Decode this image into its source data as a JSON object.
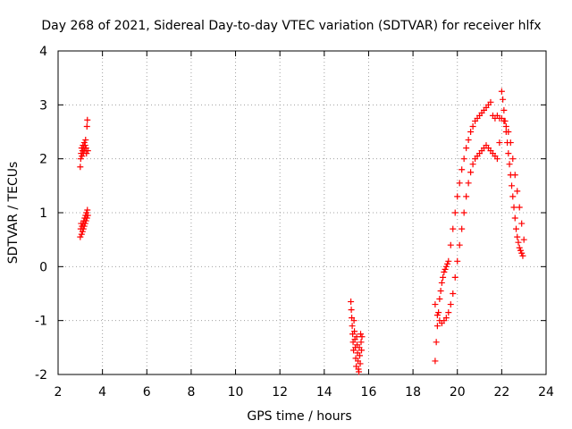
{
  "chart_data": {
    "type": "scatter",
    "title": "Day 268 of 2021, Sidereal Day-to-day VTEC variation (SDTVAR) for receiver hlfx",
    "xlabel": "GPS time / hours",
    "ylabel": "SDTVAR / TECUs",
    "xlim": [
      2,
      24
    ],
    "ylim": [
      -2,
      4
    ],
    "xticks": [
      "2",
      "4",
      "6",
      "8",
      "10",
      "12",
      "14",
      "16",
      "18",
      "20",
      "22",
      "24"
    ],
    "yticks": [
      "-2",
      "-1",
      "0",
      "1",
      "2",
      "3",
      "4"
    ],
    "grid": true,
    "marker": "+",
    "color": "#ff0000",
    "series": [
      {
        "name": "SDTVAR",
        "points": [
          [
            3.0,
            1.85
          ],
          [
            3.02,
            2.0
          ],
          [
            3.04,
            2.1
          ],
          [
            3.06,
            2.2
          ],
          [
            3.08,
            2.05
          ],
          [
            3.1,
            2.15
          ],
          [
            3.12,
            2.25
          ],
          [
            3.14,
            2.1
          ],
          [
            3.16,
            2.2
          ],
          [
            3.18,
            2.3
          ],
          [
            3.2,
            2.15
          ],
          [
            3.22,
            2.25
          ],
          [
            3.24,
            2.35
          ],
          [
            3.26,
            2.2
          ],
          [
            3.28,
            2.1
          ],
          [
            3.3,
            2.6
          ],
          [
            3.32,
            2.72
          ],
          [
            3.34,
            2.15
          ],
          [
            3.0,
            0.55
          ],
          [
            3.02,
            0.7
          ],
          [
            3.04,
            0.8
          ],
          [
            3.06,
            0.6
          ],
          [
            3.08,
            0.75
          ],
          [
            3.1,
            0.65
          ],
          [
            3.12,
            0.8
          ],
          [
            3.14,
            0.7
          ],
          [
            3.16,
            0.85
          ],
          [
            3.18,
            0.75
          ],
          [
            3.2,
            0.9
          ],
          [
            3.22,
            0.8
          ],
          [
            3.24,
            0.95
          ],
          [
            3.26,
            0.85
          ],
          [
            3.28,
            1.0
          ],
          [
            3.3,
            0.9
          ],
          [
            3.32,
            1.05
          ],
          [
            3.34,
            0.95
          ],
          [
            15.2,
            -0.65
          ],
          [
            15.22,
            -0.8
          ],
          [
            15.24,
            -0.95
          ],
          [
            15.26,
            -1.1
          ],
          [
            15.28,
            -1.25
          ],
          [
            15.3,
            -1.4
          ],
          [
            15.32,
            -1.55
          ],
          [
            15.34,
            -1.0
          ],
          [
            15.36,
            -1.2
          ],
          [
            15.38,
            -1.35
          ],
          [
            15.4,
            -1.5
          ],
          [
            15.42,
            -1.7
          ],
          [
            15.44,
            -1.85
          ],
          [
            15.46,
            -1.3
          ],
          [
            15.48,
            -1.45
          ],
          [
            15.5,
            -1.6
          ],
          [
            15.52,
            -1.75
          ],
          [
            15.54,
            -1.9
          ],
          [
            15.56,
            -1.95
          ],
          [
            15.58,
            -1.5
          ],
          [
            15.6,
            -1.65
          ],
          [
            15.62,
            -1.8
          ],
          [
            15.64,
            -1.25
          ],
          [
            15.66,
            -1.4
          ],
          [
            15.68,
            -1.55
          ],
          [
            15.7,
            -1.3
          ],
          [
            19.0,
            -1.75
          ],
          [
            19.05,
            -1.4
          ],
          [
            19.1,
            -1.1
          ],
          [
            19.15,
            -0.85
          ],
          [
            19.2,
            -0.6
          ],
          [
            19.25,
            -0.45
          ],
          [
            19.3,
            -0.3
          ],
          [
            19.35,
            -0.2
          ],
          [
            19.4,
            -0.1
          ],
          [
            19.45,
            -0.05
          ],
          [
            19.5,
            0.0
          ],
          [
            19.55,
            0.05
          ],
          [
            19.0,
            -0.7
          ],
          [
            19.1,
            -0.9
          ],
          [
            19.2,
            -1.0
          ],
          [
            19.3,
            -1.05
          ],
          [
            19.4,
            -1.0
          ],
          [
            19.5,
            -0.95
          ],
          [
            19.6,
            -0.85
          ],
          [
            19.7,
            -0.7
          ],
          [
            19.8,
            -0.5
          ],
          [
            19.9,
            -0.2
          ],
          [
            20.0,
            0.1
          ],
          [
            20.1,
            0.4
          ],
          [
            20.2,
            0.7
          ],
          [
            20.3,
            1.0
          ],
          [
            20.4,
            1.3
          ],
          [
            20.5,
            1.55
          ],
          [
            20.6,
            1.75
          ],
          [
            20.7,
            1.9
          ],
          [
            20.8,
            2.0
          ],
          [
            20.9,
            2.05
          ],
          [
            21.0,
            2.1
          ],
          [
            21.1,
            2.15
          ],
          [
            21.2,
            2.2
          ],
          [
            21.3,
            2.25
          ],
          [
            21.4,
            2.2
          ],
          [
            21.5,
            2.15
          ],
          [
            21.6,
            2.1
          ],
          [
            21.7,
            2.05
          ],
          [
            21.8,
            2.0
          ],
          [
            21.9,
            2.3
          ],
          [
            19.6,
            0.1
          ],
          [
            19.7,
            0.4
          ],
          [
            19.8,
            0.7
          ],
          [
            19.9,
            1.0
          ],
          [
            20.0,
            1.3
          ],
          [
            20.1,
            1.55
          ],
          [
            20.2,
            1.8
          ],
          [
            20.3,
            2.0
          ],
          [
            20.4,
            2.2
          ],
          [
            20.5,
            2.35
          ],
          [
            20.6,
            2.5
          ],
          [
            20.7,
            2.6
          ],
          [
            20.8,
            2.7
          ],
          [
            20.9,
            2.75
          ],
          [
            21.0,
            2.8
          ],
          [
            21.1,
            2.85
          ],
          [
            21.2,
            2.9
          ],
          [
            21.3,
            2.95
          ],
          [
            21.4,
            3.0
          ],
          [
            21.5,
            3.05
          ],
          [
            21.6,
            2.8
          ],
          [
            21.7,
            2.75
          ],
          [
            21.8,
            2.8
          ],
          [
            21.9,
            2.75
          ],
          [
            22.0,
            3.25
          ],
          [
            22.05,
            3.1
          ],
          [
            22.1,
            2.9
          ],
          [
            22.15,
            2.7
          ],
          [
            22.2,
            2.5
          ],
          [
            22.25,
            2.3
          ],
          [
            22.3,
            2.1
          ],
          [
            22.35,
            1.9
          ],
          [
            22.4,
            1.7
          ],
          [
            22.45,
            1.5
          ],
          [
            22.5,
            1.3
          ],
          [
            22.55,
            1.1
          ],
          [
            22.6,
            0.9
          ],
          [
            22.65,
            0.7
          ],
          [
            22.7,
            0.55
          ],
          [
            22.75,
            0.45
          ],
          [
            22.8,
            0.35
          ],
          [
            22.85,
            0.3
          ],
          [
            22.9,
            0.25
          ],
          [
            22.95,
            0.2
          ],
          [
            22.0,
            2.75
          ],
          [
            22.1,
            2.7
          ],
          [
            22.2,
            2.6
          ],
          [
            22.3,
            2.5
          ],
          [
            22.4,
            2.3
          ],
          [
            22.5,
            2.0
          ],
          [
            22.6,
            1.7
          ],
          [
            22.7,
            1.4
          ],
          [
            22.8,
            1.1
          ],
          [
            22.9,
            0.8
          ],
          [
            23.0,
            0.5
          ]
        ]
      }
    ]
  }
}
